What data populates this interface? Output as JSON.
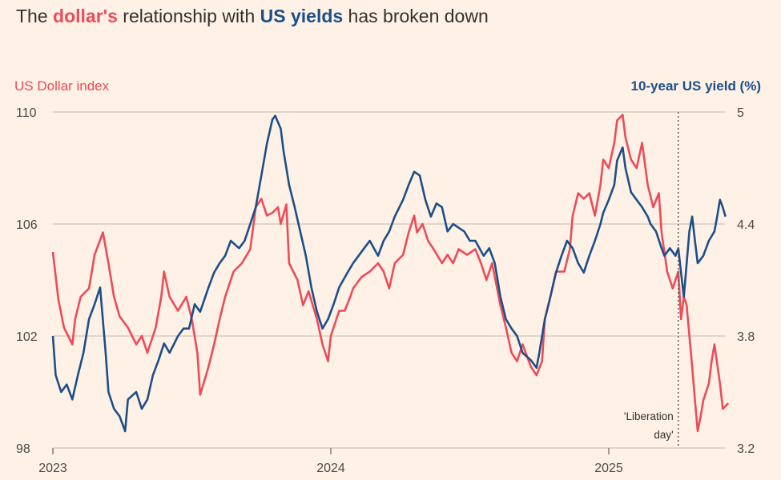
{
  "chart_data": {
    "type": "line",
    "title": {
      "prefix": "The ",
      "dollar": "dollar's",
      "middle": " relationship with ",
      "yields": "US yields",
      "suffix": " has broken down"
    },
    "left_axis": {
      "label": "US Dollar index",
      "range": [
        98,
        110
      ],
      "ticks": [
        "110",
        "106",
        "102",
        "98"
      ],
      "tick_values": [
        110,
        106,
        102,
        98
      ]
    },
    "right_axis": {
      "label": "10-year US yield (%)",
      "range": [
        3.2,
        5.0
      ],
      "ticks": [
        "5",
        "4.4",
        "3.8",
        "3.2"
      ],
      "tick_values": [
        5,
        4.4,
        3.8,
        3.2
      ]
    },
    "x_axis": {
      "range": [
        2023,
        2025.45
      ],
      "ticks": [
        "2023",
        "2024",
        "2025"
      ],
      "tick_values": [
        2023,
        2024,
        2025
      ]
    },
    "annotation": {
      "line1": "'Liberation",
      "line2": "day'",
      "x": 2025.25
    },
    "grid": true,
    "colors": {
      "dollar": "#ec4b5a",
      "yield": "#1c4f8a",
      "text": "#33302e",
      "grid": "#cfc3b8",
      "background": "#fff1e5"
    },
    "series": [
      {
        "name": "US Dollar index",
        "axis": "left",
        "points": [
          [
            2023.0,
            105.0
          ],
          [
            2023.02,
            103.3
          ],
          [
            2023.04,
            102.3
          ],
          [
            2023.07,
            101.7
          ],
          [
            2023.08,
            102.6
          ],
          [
            2023.1,
            103.4
          ],
          [
            2023.13,
            103.7
          ],
          [
            2023.15,
            104.9
          ],
          [
            2023.18,
            105.7
          ],
          [
            2023.2,
            104.6
          ],
          [
            2023.22,
            103.4
          ],
          [
            2023.24,
            102.7
          ],
          [
            2023.27,
            102.3
          ],
          [
            2023.3,
            101.7
          ],
          [
            2023.32,
            102.0
          ],
          [
            2023.34,
            101.4
          ],
          [
            2023.37,
            102.3
          ],
          [
            2023.39,
            103.4
          ],
          [
            2023.4,
            104.3
          ],
          [
            2023.42,
            103.4
          ],
          [
            2023.45,
            102.9
          ],
          [
            2023.48,
            103.4
          ],
          [
            2023.5,
            102.6
          ],
          [
            2023.52,
            101.4
          ],
          [
            2023.53,
            99.9
          ],
          [
            2023.56,
            100.9
          ],
          [
            2023.58,
            101.7
          ],
          [
            2023.6,
            102.6
          ],
          [
            2023.62,
            103.4
          ],
          [
            2023.65,
            104.3
          ],
          [
            2023.68,
            104.6
          ],
          [
            2023.71,
            105.1
          ],
          [
            2023.73,
            106.6
          ],
          [
            2023.75,
            106.9
          ],
          [
            2023.77,
            106.3
          ],
          [
            2023.79,
            106.4
          ],
          [
            2023.81,
            106.6
          ],
          [
            2023.82,
            106.0
          ],
          [
            2023.84,
            106.7
          ],
          [
            2023.85,
            104.6
          ],
          [
            2023.88,
            104.0
          ],
          [
            2023.9,
            103.1
          ],
          [
            2023.92,
            103.6
          ],
          [
            2023.95,
            102.6
          ],
          [
            2023.97,
            101.7
          ],
          [
            2023.99,
            101.1
          ],
          [
            2024.0,
            102.0
          ],
          [
            2024.03,
            102.9
          ],
          [
            2024.05,
            102.9
          ],
          [
            2024.07,
            103.4
          ],
          [
            2024.08,
            103.7
          ],
          [
            2024.11,
            104.1
          ],
          [
            2024.14,
            104.3
          ],
          [
            2024.17,
            104.6
          ],
          [
            2024.19,
            104.3
          ],
          [
            2024.21,
            103.7
          ],
          [
            2024.23,
            104.6
          ],
          [
            2024.26,
            104.9
          ],
          [
            2024.28,
            105.7
          ],
          [
            2024.3,
            106.3
          ],
          [
            2024.31,
            105.7
          ],
          [
            2024.33,
            106.0
          ],
          [
            2024.35,
            105.4
          ],
          [
            2024.37,
            105.1
          ],
          [
            2024.4,
            104.6
          ],
          [
            2024.42,
            104.9
          ],
          [
            2024.44,
            104.6
          ],
          [
            2024.46,
            105.1
          ],
          [
            2024.49,
            104.9
          ],
          [
            2024.52,
            105.1
          ],
          [
            2024.54,
            104.6
          ],
          [
            2024.56,
            104.0
          ],
          [
            2024.58,
            104.6
          ],
          [
            2024.61,
            103.1
          ],
          [
            2024.63,
            102.3
          ],
          [
            2024.65,
            101.4
          ],
          [
            2024.67,
            101.1
          ],
          [
            2024.69,
            101.7
          ],
          [
            2024.72,
            100.9
          ],
          [
            2024.74,
            100.6
          ],
          [
            2024.76,
            101.1
          ],
          [
            2024.77,
            102.6
          ],
          [
            2024.79,
            103.4
          ],
          [
            2024.81,
            104.3
          ],
          [
            2024.84,
            104.3
          ],
          [
            2024.86,
            105.1
          ],
          [
            2024.87,
            106.3
          ],
          [
            2024.89,
            107.1
          ],
          [
            2024.91,
            106.9
          ],
          [
            2024.93,
            107.1
          ],
          [
            2024.95,
            106.3
          ],
          [
            2024.97,
            107.4
          ],
          [
            2024.98,
            108.3
          ],
          [
            2025.0,
            108.0
          ],
          [
            2025.02,
            108.9
          ],
          [
            2025.03,
            109.7
          ],
          [
            2025.05,
            109.9
          ],
          [
            2025.06,
            109.1
          ],
          [
            2025.08,
            108.3
          ],
          [
            2025.1,
            108.0
          ],
          [
            2025.12,
            108.9
          ],
          [
            2025.14,
            107.4
          ],
          [
            2025.16,
            106.6
          ],
          [
            2025.18,
            107.1
          ],
          [
            2025.19,
            105.7
          ],
          [
            2025.21,
            104.3
          ],
          [
            2025.23,
            103.7
          ],
          [
            2025.24,
            104.0
          ],
          [
            2025.25,
            104.3
          ],
          [
            2025.26,
            102.6
          ],
          [
            2025.27,
            103.4
          ],
          [
            2025.28,
            103.1
          ],
          [
            2025.3,
            100.9
          ],
          [
            2025.31,
            99.7
          ],
          [
            2025.32,
            98.6
          ],
          [
            2025.33,
            99.1
          ],
          [
            2025.34,
            99.7
          ],
          [
            2025.36,
            100.3
          ],
          [
            2025.37,
            101.1
          ],
          [
            2025.38,
            101.7
          ],
          [
            2025.4,
            100.3
          ],
          [
            2025.41,
            99.4
          ],
          [
            2025.43,
            99.6
          ]
        ]
      },
      {
        "name": "10-year US yield (%)",
        "axis": "right",
        "points": [
          [
            2023.0,
            3.8
          ],
          [
            2023.01,
            3.59
          ],
          [
            2023.03,
            3.5
          ],
          [
            2023.05,
            3.54
          ],
          [
            2023.07,
            3.46
          ],
          [
            2023.09,
            3.59
          ],
          [
            2023.11,
            3.71
          ],
          [
            2023.13,
            3.89
          ],
          [
            2023.15,
            3.97
          ],
          [
            2023.17,
            4.06
          ],
          [
            2023.19,
            3.71
          ],
          [
            2023.2,
            3.5
          ],
          [
            2023.22,
            3.41
          ],
          [
            2023.24,
            3.37
          ],
          [
            2023.26,
            3.29
          ],
          [
            2023.27,
            3.46
          ],
          [
            2023.3,
            3.5
          ],
          [
            2023.32,
            3.41
          ],
          [
            2023.34,
            3.46
          ],
          [
            2023.36,
            3.59
          ],
          [
            2023.38,
            3.67
          ],
          [
            2023.4,
            3.76
          ],
          [
            2023.42,
            3.71
          ],
          [
            2023.45,
            3.8
          ],
          [
            2023.47,
            3.84
          ],
          [
            2023.49,
            3.84
          ],
          [
            2023.51,
            3.97
          ],
          [
            2023.53,
            3.93
          ],
          [
            2023.56,
            4.06
          ],
          [
            2023.58,
            4.14
          ],
          [
            2023.6,
            4.19
          ],
          [
            2023.62,
            4.23
          ],
          [
            2023.64,
            4.31
          ],
          [
            2023.67,
            4.27
          ],
          [
            2023.69,
            4.31
          ],
          [
            2023.71,
            4.4
          ],
          [
            2023.73,
            4.49
          ],
          [
            2023.75,
            4.66
          ],
          [
            2023.77,
            4.83
          ],
          [
            2023.79,
            4.96
          ],
          [
            2023.8,
            4.98
          ],
          [
            2023.82,
            4.91
          ],
          [
            2023.83,
            4.79
          ],
          [
            2023.85,
            4.61
          ],
          [
            2023.87,
            4.49
          ],
          [
            2023.89,
            4.36
          ],
          [
            2023.91,
            4.23
          ],
          [
            2023.93,
            4.06
          ],
          [
            2023.95,
            3.93
          ],
          [
            2023.97,
            3.84
          ],
          [
            2023.99,
            3.89
          ],
          [
            2024.01,
            3.97
          ],
          [
            2024.03,
            4.06
          ],
          [
            2024.06,
            4.14
          ],
          [
            2024.08,
            4.19
          ],
          [
            2024.1,
            4.23
          ],
          [
            2024.12,
            4.27
          ],
          [
            2024.14,
            4.31
          ],
          [
            2024.17,
            4.23
          ],
          [
            2024.19,
            4.31
          ],
          [
            2024.21,
            4.36
          ],
          [
            2024.23,
            4.44
          ],
          [
            2024.26,
            4.53
          ],
          [
            2024.28,
            4.61
          ],
          [
            2024.3,
            4.68
          ],
          [
            2024.32,
            4.66
          ],
          [
            2024.34,
            4.53
          ],
          [
            2024.36,
            4.44
          ],
          [
            2024.38,
            4.51
          ],
          [
            2024.4,
            4.49
          ],
          [
            2024.42,
            4.36
          ],
          [
            2024.44,
            4.4
          ],
          [
            2024.46,
            4.38
          ],
          [
            2024.48,
            4.36
          ],
          [
            2024.5,
            4.31
          ],
          [
            2024.52,
            4.31
          ],
          [
            2024.55,
            4.23
          ],
          [
            2024.57,
            4.27
          ],
          [
            2024.59,
            4.19
          ],
          [
            2024.61,
            4.01
          ],
          [
            2024.63,
            3.89
          ],
          [
            2024.65,
            3.84
          ],
          [
            2024.67,
            3.8
          ],
          [
            2024.69,
            3.71
          ],
          [
            2024.72,
            3.67
          ],
          [
            2024.74,
            3.63
          ],
          [
            2024.75,
            3.71
          ],
          [
            2024.77,
            3.89
          ],
          [
            2024.79,
            4.01
          ],
          [
            2024.81,
            4.14
          ],
          [
            2024.83,
            4.23
          ],
          [
            2024.85,
            4.31
          ],
          [
            2024.87,
            4.27
          ],
          [
            2024.89,
            4.19
          ],
          [
            2024.91,
            4.14
          ],
          [
            2024.93,
            4.23
          ],
          [
            2024.95,
            4.31
          ],
          [
            2024.97,
            4.4
          ],
          [
            2024.98,
            4.46
          ],
          [
            2025.0,
            4.53
          ],
          [
            2025.02,
            4.61
          ],
          [
            2025.03,
            4.74
          ],
          [
            2025.05,
            4.81
          ],
          [
            2025.06,
            4.7
          ],
          [
            2025.08,
            4.57
          ],
          [
            2025.1,
            4.53
          ],
          [
            2025.12,
            4.49
          ],
          [
            2025.14,
            4.44
          ],
          [
            2025.15,
            4.4
          ],
          [
            2025.17,
            4.36
          ],
          [
            2025.19,
            4.27
          ],
          [
            2025.2,
            4.23
          ],
          [
            2025.22,
            4.27
          ],
          [
            2025.24,
            4.23
          ],
          [
            2025.25,
            4.27
          ],
          [
            2025.26,
            4.14
          ],
          [
            2025.27,
            4.01
          ],
          [
            2025.29,
            4.36
          ],
          [
            2025.3,
            4.44
          ],
          [
            2025.31,
            4.31
          ],
          [
            2025.32,
            4.19
          ],
          [
            2025.34,
            4.23
          ],
          [
            2025.36,
            4.31
          ],
          [
            2025.38,
            4.36
          ],
          [
            2025.39,
            4.44
          ],
          [
            2025.4,
            4.53
          ],
          [
            2025.41,
            4.49
          ],
          [
            2025.42,
            4.44
          ]
        ]
      }
    ]
  }
}
